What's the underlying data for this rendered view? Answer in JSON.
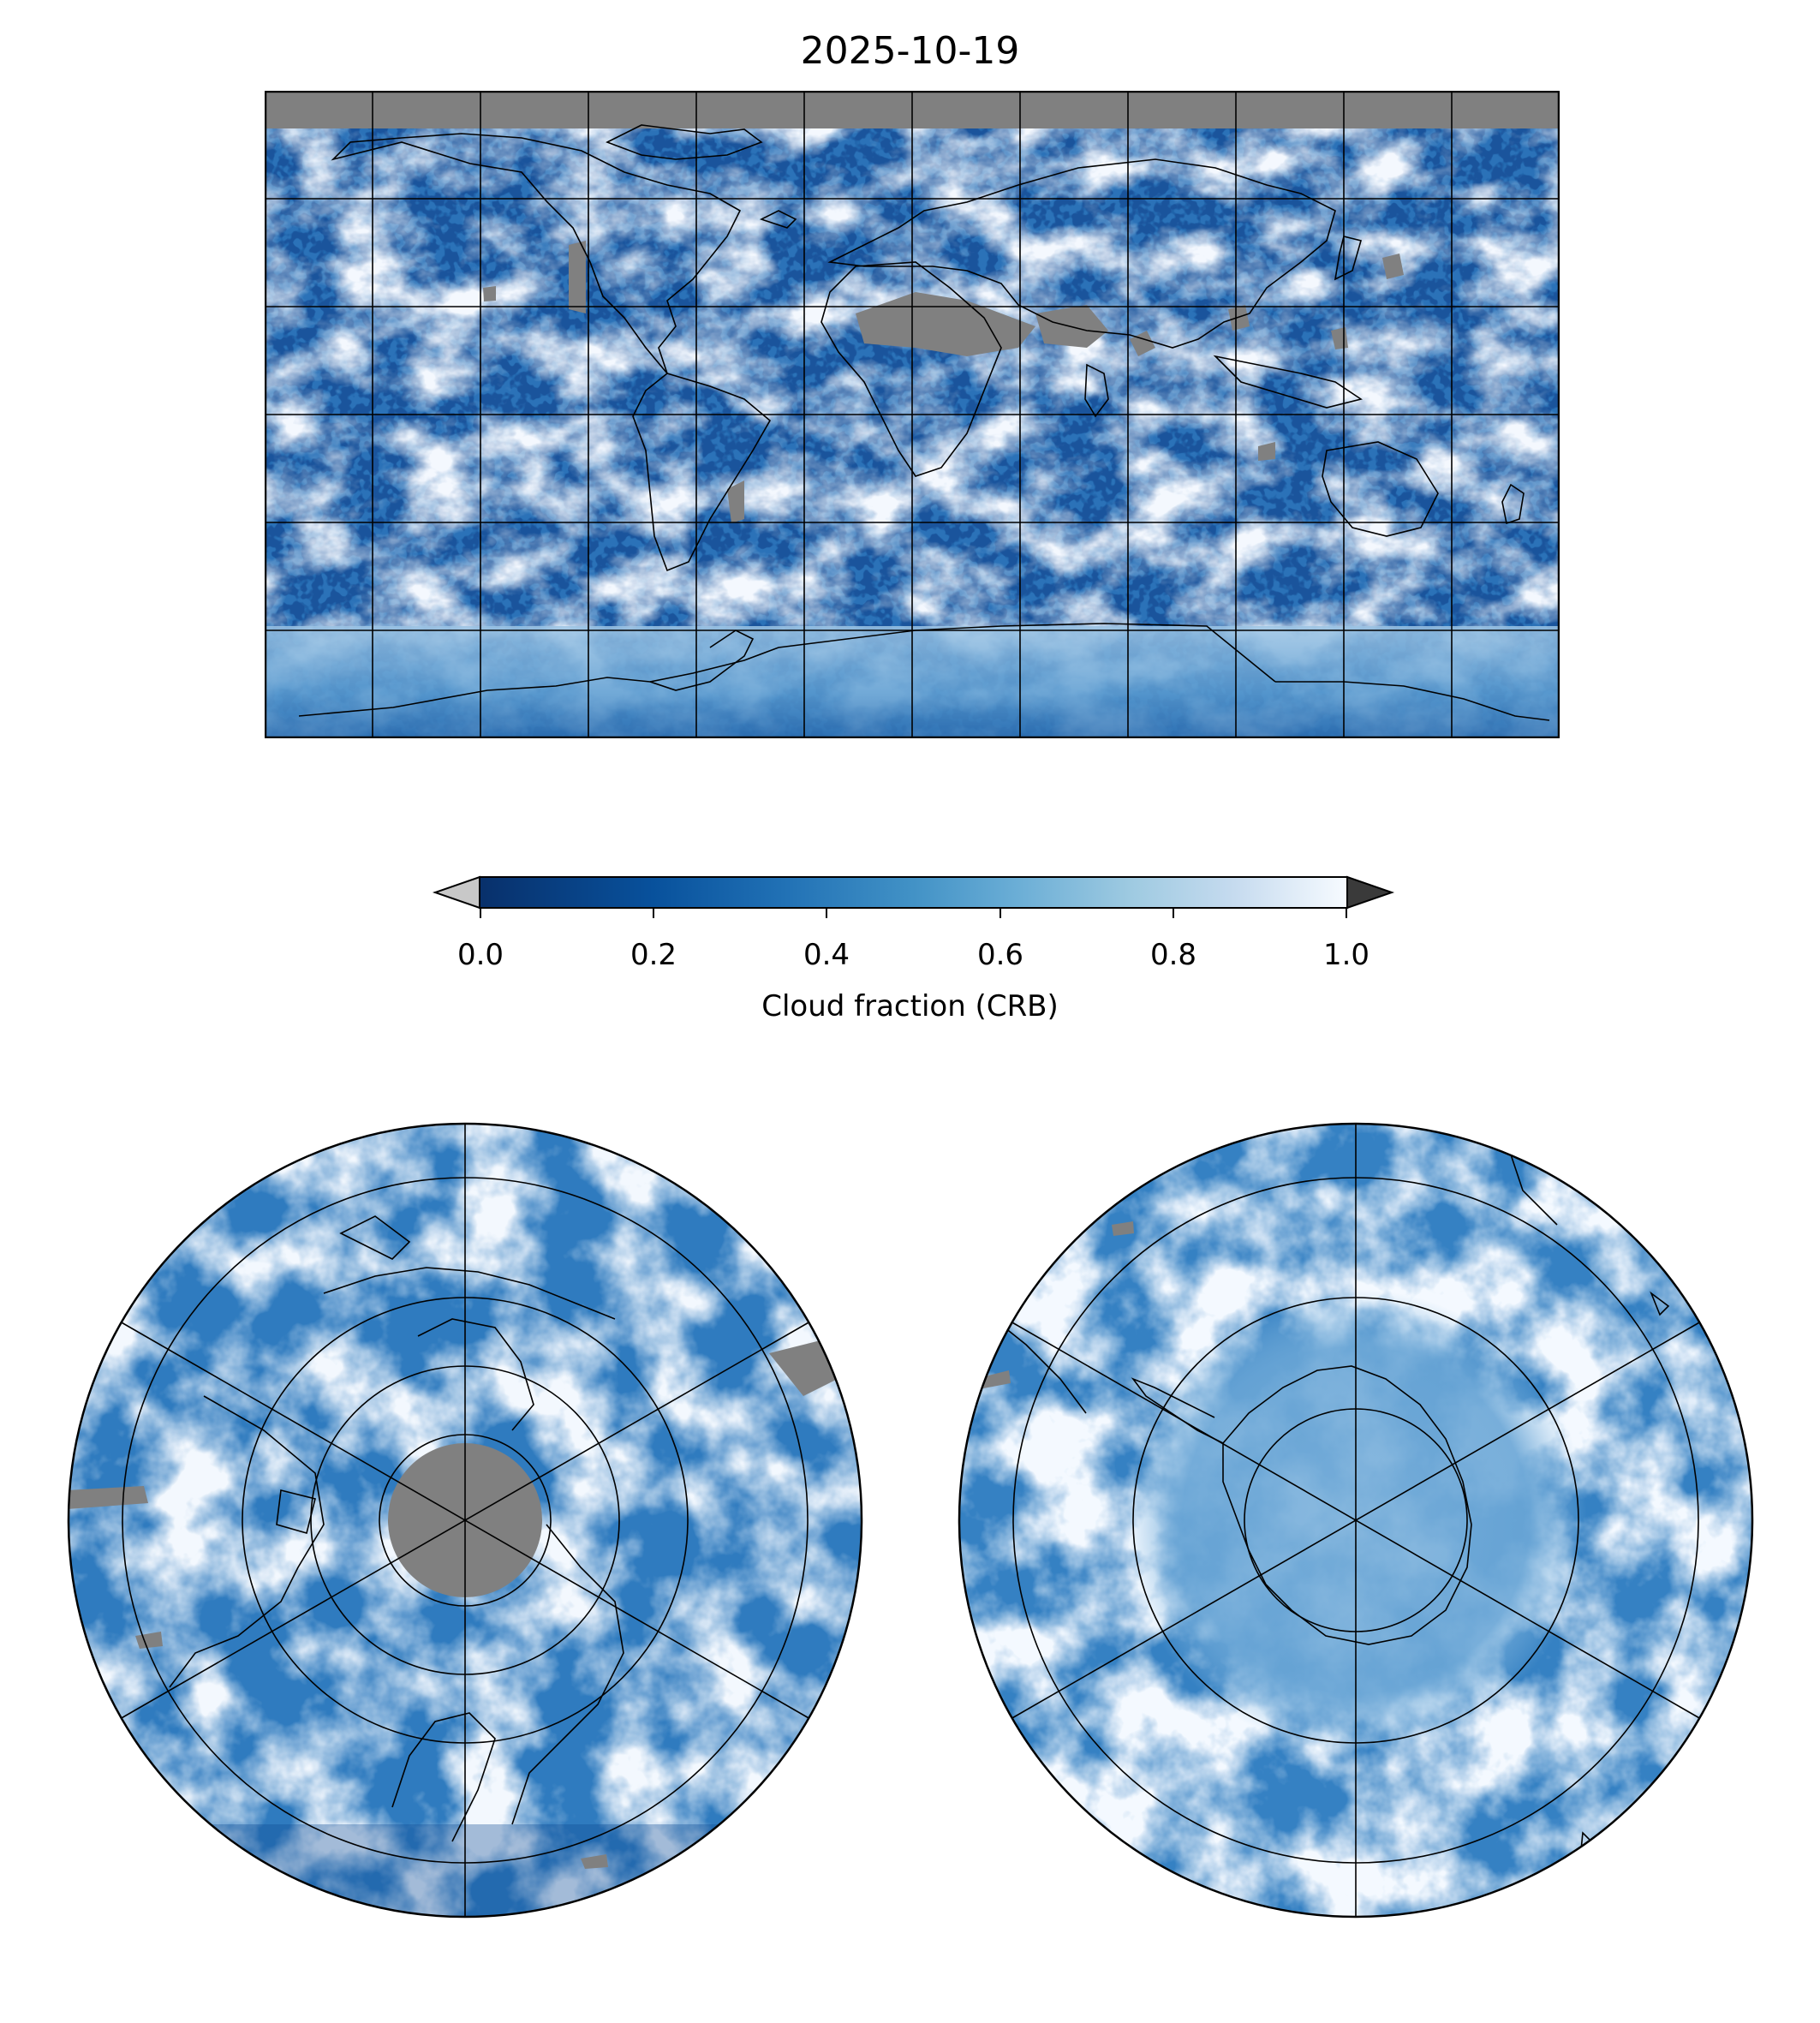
{
  "title": "2025-10-19",
  "colorbar": {
    "label": "Cloud fraction (CRB)",
    "ticks": [
      "0.0",
      "0.2",
      "0.4",
      "0.6",
      "0.8",
      "1.0"
    ],
    "range": [
      0.0,
      1.0
    ],
    "colormap": "Blues_r",
    "under_color": "#c8c8c8",
    "over_color": "#3a3a3a",
    "missing_color": "#808080",
    "coastline_color": "#000000"
  },
  "maps": [
    {
      "name": "global",
      "projection": "plate-carree"
    },
    {
      "name": "north-polar",
      "projection": "north-polar-stereographic"
    },
    {
      "name": "south-polar",
      "projection": "south-polar-stereographic"
    }
  ]
}
